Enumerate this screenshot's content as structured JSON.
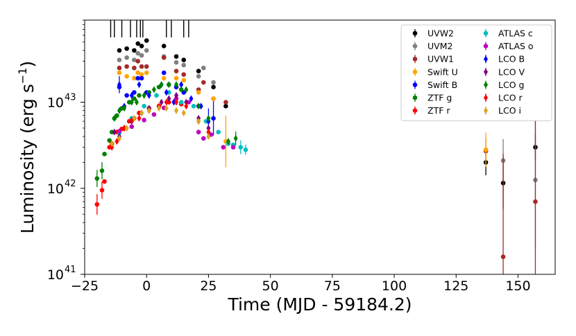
{
  "chart_data": {
    "type": "scatter",
    "xlabel": "Time (MJD - 59184.2)",
    "ylabel_base": "Luminosity (erg s",
    "ylabel_sup": "−1",
    "ylabel_close": ")",
    "xlim": [
      -25,
      165
    ],
    "ylog": true,
    "ylim": [
      1e+41,
      9e+43
    ],
    "x_ticks": [
      -25,
      0,
      25,
      50,
      75,
      100,
      125,
      150
    ],
    "x_tick_labels": [
      "−25",
      "0",
      "25",
      "50",
      "75",
      "100",
      "125",
      "150"
    ],
    "y_ticks": [
      1e+41,
      1e+42,
      1e+43
    ],
    "y_tick_base": "10",
    "y_tick_exps": [
      "41",
      "42",
      "43"
    ],
    "grid": false,
    "legend_position": "top-right",
    "spectra_epochs": [
      -14.5,
      -13,
      -10,
      -6.5,
      -4,
      -2.5,
      -1.5,
      8,
      10,
      15,
      17
    ],
    "series": [
      {
        "name": "UVW2",
        "color": "#000000",
        "marker": "circle",
        "points": [
          [
            -11,
            4e+43
          ],
          [
            -8,
            4.2e+43
          ],
          [
            -5,
            4e+43
          ],
          [
            -3.5,
            4.8e+43
          ],
          [
            -2,
            4.5e+43
          ],
          [
            0,
            5.2e+43
          ],
          [
            7,
            4.5e+43
          ],
          [
            12,
            3.4e+43
          ],
          [
            15,
            3.1e+43
          ],
          [
            21,
            2.3e+43
          ],
          [
            27,
            1.5e+43
          ],
          [
            32,
            9e+42
          ],
          [
            137,
            2e+42
          ],
          [
            144,
            1.15e+42
          ],
          [
            157,
            3e+42
          ]
        ],
        "errors": [
          [
            137,
            0.15
          ],
          [
            144,
            0.3
          ],
          [
            157,
            0.15
          ]
        ]
      },
      {
        "name": "UVM2",
        "color": "#808080",
        "marker": "circle",
        "points": [
          [
            -11,
            3.1e+43
          ],
          [
            -8,
            3.3e+43
          ],
          [
            -5,
            3.1e+43
          ],
          [
            -3.5,
            3.7e+43
          ],
          [
            -2,
            3.5e+43
          ],
          [
            0,
            4e+43
          ],
          [
            7,
            3.4e+43
          ],
          [
            12,
            2.9e+43
          ],
          [
            15,
            2.7e+43
          ],
          [
            21,
            2e+43
          ],
          [
            23,
            2.5e+43
          ],
          [
            27,
            1.7e+43
          ],
          [
            144,
            2.1e+42
          ],
          [
            157,
            1.25e+42
          ]
        ],
        "errors": [
          [
            144,
            0.25
          ],
          [
            157,
            0.8
          ]
        ]
      },
      {
        "name": "UVW1",
        "color": "#a52a2a",
        "marker": "circle",
        "points": [
          [
            -11,
            2.5e+43
          ],
          [
            -8,
            2.6e+43
          ],
          [
            -5,
            2.5e+43
          ],
          [
            -3.5,
            3e+43
          ],
          [
            -2,
            2.6e+43
          ],
          [
            0,
            2.6e+43
          ],
          [
            7,
            3.3e+43
          ],
          [
            12,
            2.3e+43
          ],
          [
            15,
            2.1e+43
          ],
          [
            21,
            1.4e+43
          ],
          [
            23,
            1.7e+43
          ],
          [
            27,
            1.1e+43
          ],
          [
            32,
            1e+43
          ],
          [
            137,
            2.7e+42
          ],
          [
            144,
            1.6e+41
          ],
          [
            157,
            7e+41
          ]
        ],
        "errors": [
          [
            137,
            0.15
          ],
          [
            144,
            1.2
          ],
          [
            157,
            1.2
          ]
        ]
      },
      {
        "name": "Swift U",
        "color": "#ffa500",
        "marker": "circle",
        "points": [
          [
            -11,
            2.2e+43
          ],
          [
            -8,
            2e+43
          ],
          [
            -5,
            1.9e+43
          ],
          [
            -3.5,
            2.2e+43
          ],
          [
            -2,
            2.1e+43
          ],
          [
            0,
            2.2e+43
          ],
          [
            7,
            1.9e+43
          ],
          [
            12,
            1.9e+43
          ],
          [
            15,
            1.8e+43
          ],
          [
            21,
            1.3e+43
          ],
          [
            27,
            1.1e+43
          ],
          [
            32,
            3.5e+42
          ],
          [
            137,
            2.8e+42
          ]
        ],
        "errors": [
          [
            32,
            0.3
          ],
          [
            137,
            0.2
          ]
        ]
      },
      {
        "name": "Swift B",
        "color": "#0000ff",
        "marker": "circle",
        "points": [
          [
            -11,
            1.5e+43
          ],
          [
            -8,
            1.2e+43
          ],
          [
            -5,
            1.3e+43
          ],
          [
            -3.5,
            1.9e+43
          ],
          [
            -2,
            1.9e+43
          ],
          [
            0,
            1.3e+43
          ],
          [
            7,
            2.2e+43
          ],
          [
            12,
            1.5e+43
          ],
          [
            15,
            1.3e+43
          ],
          [
            21,
            9e+42
          ],
          [
            27,
            6.5e+42
          ]
        ],
        "errors": [
          [
            27,
            0.2
          ]
        ]
      },
      {
        "name": "ZTF g",
        "color": "#008000",
        "marker": "circle",
        "points": [
          [
            -20,
            1.3e+42
          ],
          [
            -18,
            1.6e+42
          ],
          [
            -17,
            2.5e+42
          ],
          [
            -15,
            3.6e+42
          ],
          [
            -14,
            4.5e+42
          ],
          [
            -13,
            6.5e+42
          ],
          [
            -12,
            7e+42
          ],
          [
            -10,
            8.5e+42
          ],
          [
            -7,
            1e+43
          ],
          [
            -5,
            1.1e+43
          ],
          [
            -3,
            1.2e+43
          ],
          [
            1,
            1.3e+43
          ],
          [
            5,
            1.5e+43
          ],
          [
            9,
            1.6e+43
          ],
          [
            14,
            1.4e+43
          ]
        ],
        "errors": [
          [
            -20,
            0.1
          ],
          [
            -18,
            0.1
          ]
        ]
      },
      {
        "name": "ZTF r",
        "color": "#ff0000",
        "marker": "circle",
        "points": [
          [
            -20,
            6.5e+41
          ],
          [
            -18,
            9.5e+41
          ],
          [
            -17,
            1.2e+42
          ],
          [
            -15,
            3e+42
          ],
          [
            -14,
            3.3e+42
          ],
          [
            -12,
            4.5e+42
          ],
          [
            -10,
            4.9e+42
          ],
          [
            -7,
            6e+42
          ],
          [
            -5,
            6.5e+42
          ],
          [
            -3,
            7.5e+42
          ],
          [
            1,
            8.5e+42
          ],
          [
            5,
            9e+42
          ],
          [
            9,
            1e+43
          ],
          [
            14,
            9.5e+42
          ]
        ],
        "errors": [
          [
            -20,
            0.12
          ],
          [
            -18,
            0.1
          ]
        ]
      },
      {
        "name": "ATLAS c",
        "color": "#00bfbf",
        "marker": "circle",
        "points": [
          [
            -11,
            4.4e+42
          ],
          [
            -6,
            6.5e+42
          ],
          [
            -1,
            9e+42
          ],
          [
            4,
            1.2e+43
          ],
          [
            9,
            1.3e+43
          ],
          [
            14,
            1e+43
          ],
          [
            19,
            9e+42
          ],
          [
            24,
            6e+42
          ],
          [
            29,
            4.5e+42
          ],
          [
            33,
            3.3e+42
          ],
          [
            35,
            3.2e+42
          ],
          [
            38,
            3e+42
          ],
          [
            40,
            2.8e+42
          ]
        ],
        "errors": [
          [
            38,
            0.08
          ],
          [
            40,
            0.06
          ]
        ]
      },
      {
        "name": "ATLAS o",
        "color": "#bf00bf",
        "marker": "circle",
        "points": [
          [
            -11,
            4.6e+42
          ],
          [
            -6,
            5.2e+42
          ],
          [
            -1,
            6.2e+42
          ],
          [
            3,
            7.2e+42
          ],
          [
            7,
            8.6e+42
          ],
          [
            12,
            1.1e+43
          ],
          [
            17,
            1e+43
          ],
          [
            21,
            4.5e+42
          ],
          [
            23,
            3.8e+42
          ],
          [
            26,
            4.2e+42
          ],
          [
            31,
            3e+42
          ],
          [
            35,
            3e+42
          ]
        ],
        "errors": []
      },
      {
        "name": "LCO B",
        "color": "#0000ff",
        "marker": "diamond",
        "points": [
          [
            -11,
            1.6e+43
          ],
          [
            -9,
            9e+42
          ],
          [
            -6,
            1.2e+43
          ],
          [
            -3,
            1.6e+43
          ],
          [
            1,
            1.2e+43
          ],
          [
            6,
            1.6e+43
          ],
          [
            8,
            1.3e+43
          ],
          [
            11,
            1e+43
          ],
          [
            14,
            1.6e+43
          ],
          [
            18,
            1.1e+43
          ],
          [
            22,
            9e+42
          ],
          [
            25,
            6e+42
          ]
        ],
        "errors": [
          [
            -11,
            0.1
          ],
          [
            25,
            0.15
          ]
        ]
      },
      {
        "name": "LCO V",
        "color": "#800080",
        "marker": "diamond",
        "points": [
          [
            -13,
            4.5e+42
          ],
          [
            -11,
            4e+42
          ],
          [
            -9,
            5e+42
          ],
          [
            -6,
            6e+42
          ],
          [
            -2,
            7.5e+42
          ],
          [
            1,
            8.5e+42
          ],
          [
            6,
            1e+43
          ],
          [
            9,
            1.1e+43
          ],
          [
            12,
            1.2e+43
          ],
          [
            16,
            1e+43
          ],
          [
            21,
            6.5e+42
          ],
          [
            25,
            5e+42
          ]
        ],
        "errors": []
      },
      {
        "name": "LCO g",
        "color": "#008000",
        "marker": "diamond",
        "points": [
          [
            -13,
            6.5e+42
          ],
          [
            -11,
            8e+42
          ],
          [
            -9,
            8.5e+42
          ],
          [
            -6,
            1e+43
          ],
          [
            -4,
            1e+43
          ],
          [
            -1,
            1.2e+43
          ],
          [
            3,
            1.4e+43
          ],
          [
            6,
            1.6e+43
          ],
          [
            9,
            1.6e+43
          ],
          [
            12,
            1.6e+43
          ],
          [
            16,
            1.4e+43
          ],
          [
            21,
            9e+42
          ],
          [
            25,
            6.5e+42
          ],
          [
            33,
            3.5e+42
          ],
          [
            36,
            3.8e+42
          ]
        ],
        "errors": [
          [
            36,
            0.08
          ]
        ]
      },
      {
        "name": "LCO r",
        "color": "#ff0000",
        "marker": "diamond",
        "points": [
          [
            -14,
            3e+42
          ],
          [
            -12,
            3.5e+42
          ],
          [
            -9,
            5e+42
          ],
          [
            -6,
            6.2e+42
          ],
          [
            -3,
            6.5e+42
          ],
          [
            1,
            8e+42
          ],
          [
            5,
            9e+42
          ],
          [
            8,
            1e+43
          ],
          [
            12,
            1e+43
          ],
          [
            16,
            9e+42
          ],
          [
            21,
            6e+42
          ],
          [
            25,
            4.5e+42
          ]
        ],
        "errors": []
      },
      {
        "name": "LCO i",
        "color": "#daa520",
        "marker": "diamond",
        "points": [
          [
            -14,
            3.3e+42
          ],
          [
            -11,
            3.8e+42
          ],
          [
            -8,
            5e+42
          ],
          [
            -5,
            6.5e+42
          ],
          [
            -2,
            7.5e+42
          ],
          [
            1,
            8e+42
          ],
          [
            5,
            8.5e+42
          ],
          [
            8,
            8.5e+42
          ],
          [
            12,
            8e+42
          ],
          [
            15,
            7.5e+42
          ],
          [
            21,
            6e+42
          ],
          [
            25,
            4e+42
          ]
        ],
        "errors": []
      }
    ]
  }
}
